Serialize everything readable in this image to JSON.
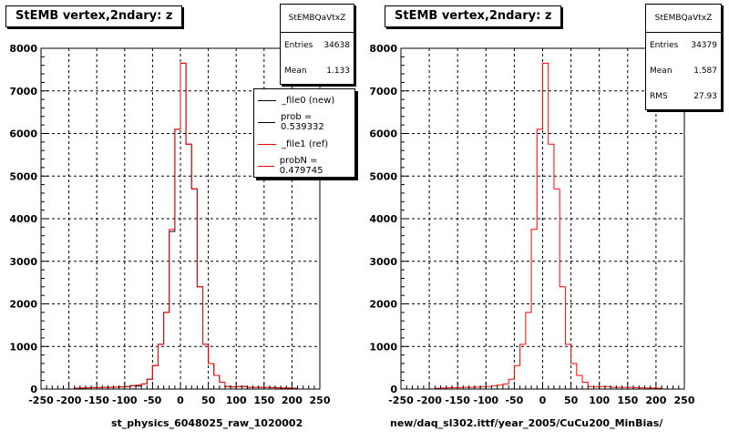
{
  "chart_data": [
    {
      "type": "histogram",
      "title": "StEMB  vertex,2ndary: z",
      "xlabel": "st_physics_6048025_raw_1020002",
      "xlim": [
        -250,
        250
      ],
      "ylim": [
        0,
        8000
      ],
      "xticks": [
        "-250",
        "-200",
        "-150",
        "-100",
        "-50",
        "0",
        "50",
        "100",
        "150",
        "200",
        "250"
      ],
      "yticks": [
        "0",
        "1000",
        "2000",
        "3000",
        "4000",
        "5000",
        "6000",
        "7000",
        "8000"
      ],
      "grid": true,
      "stats": {
        "name": "StEMBQaVtxZ",
        "rows": [
          {
            "label": "Entries",
            "value": "34638"
          },
          {
            "label": "Mean",
            "value": "1.133"
          }
        ]
      },
      "legend": {
        "placement": "top-right",
        "entries": [
          {
            "label": "_file0 (new)",
            "color": "#000000"
          },
          {
            "label": "prob = 0.539332",
            "color": "#000000"
          },
          {
            "label": "_file1 (ref)",
            "color": "#ff0000"
          },
          {
            "label": "probN = 0.479745",
            "color": "#ff0000"
          }
        ]
      },
      "bin_width": 10,
      "series": [
        {
          "name": "_file0 (new)",
          "color": "#000000",
          "bin_edges": [
            -250,
            -240,
            -230,
            -220,
            -210,
            -200,
            -190,
            -180,
            -170,
            -160,
            -150,
            -140,
            -130,
            -120,
            -110,
            -100,
            -90,
            -80,
            -70,
            -60,
            -50,
            -40,
            -30,
            -20,
            -10,
            0,
            10,
            20,
            30,
            40,
            50,
            60,
            70,
            80,
            90,
            100,
            110,
            120,
            130,
            140,
            150,
            160,
            170,
            180,
            190,
            200,
            210,
            220,
            230,
            240,
            250
          ],
          "values": [
            0,
            0,
            0,
            0,
            0,
            0,
            20,
            25,
            30,
            35,
            35,
            40,
            40,
            45,
            50,
            60,
            80,
            70,
            120,
            230,
            550,
            1050,
            1800,
            3700,
            6100,
            7650,
            5750,
            4700,
            2400,
            1050,
            600,
            320,
            160,
            60,
            50,
            60,
            60,
            40,
            40,
            40,
            40,
            35,
            30,
            25,
            25,
            20,
            0,
            0,
            0,
            0
          ]
        },
        {
          "name": "_file1 (ref)",
          "color": "#ff0000",
          "bin_edges": [
            -250,
            -240,
            -230,
            -220,
            -210,
            -200,
            -190,
            -180,
            -170,
            -160,
            -150,
            -140,
            -130,
            -120,
            -110,
            -100,
            -90,
            -80,
            -70,
            -60,
            -50,
            -40,
            -30,
            -20,
            -10,
            0,
            10,
            20,
            30,
            40,
            50,
            60,
            70,
            80,
            90,
            100,
            110,
            120,
            130,
            140,
            150,
            160,
            170,
            180,
            190,
            200,
            210,
            220,
            230,
            240,
            250
          ],
          "values": [
            0,
            0,
            0,
            0,
            0,
            0,
            20,
            25,
            30,
            35,
            35,
            40,
            40,
            45,
            50,
            60,
            80,
            90,
            120,
            230,
            550,
            1050,
            1800,
            3750,
            6100,
            7650,
            5750,
            4700,
            2400,
            1050,
            600,
            320,
            160,
            60,
            50,
            60,
            60,
            40,
            40,
            40,
            40,
            35,
            30,
            25,
            25,
            20,
            0,
            0,
            0,
            0
          ]
        }
      ]
    },
    {
      "type": "histogram",
      "title": "StEMB  vertex,2ndary: z",
      "xlabel": "new/daq_sl302.ittf/year_2005/CuCu200_MinBias/",
      "xlim": [
        -250,
        250
      ],
      "ylim": [
        0,
        8000
      ],
      "xticks": [
        "-250",
        "-200",
        "-150",
        "-100",
        "-50",
        "0",
        "50",
        "100",
        "150",
        "200",
        "250"
      ],
      "yticks": [
        "0",
        "1000",
        "2000",
        "3000",
        "4000",
        "5000",
        "6000",
        "7000",
        "8000"
      ],
      "grid": true,
      "stats": {
        "name": "StEMBQaVtxZ",
        "rows": [
          {
            "label": "Entries",
            "value": "34379"
          },
          {
            "label": "Mean",
            "value": "1.587"
          },
          {
            "label": "RMS",
            "value": "27.93"
          }
        ]
      },
      "bin_width": 10,
      "series": [
        {
          "color": "#ff0000",
          "bin_edges": [
            -250,
            -240,
            -230,
            -220,
            -210,
            -200,
            -190,
            -180,
            -170,
            -160,
            -150,
            -140,
            -130,
            -120,
            -110,
            -100,
            -90,
            -80,
            -70,
            -60,
            -50,
            -40,
            -30,
            -20,
            -10,
            0,
            10,
            20,
            30,
            40,
            50,
            60,
            70,
            80,
            90,
            100,
            110,
            120,
            130,
            140,
            150,
            160,
            170,
            180,
            190,
            200,
            210,
            220,
            230,
            240,
            250
          ],
          "values": [
            0,
            0,
            0,
            0,
            0,
            0,
            20,
            25,
            30,
            35,
            35,
            40,
            40,
            45,
            50,
            60,
            80,
            90,
            120,
            230,
            550,
            1050,
            1800,
            3750,
            6100,
            7650,
            5750,
            4700,
            2400,
            1050,
            600,
            320,
            160,
            60,
            50,
            60,
            60,
            40,
            40,
            40,
            40,
            35,
            30,
            25,
            25,
            20,
            0,
            0,
            0,
            0
          ]
        }
      ]
    }
  ]
}
